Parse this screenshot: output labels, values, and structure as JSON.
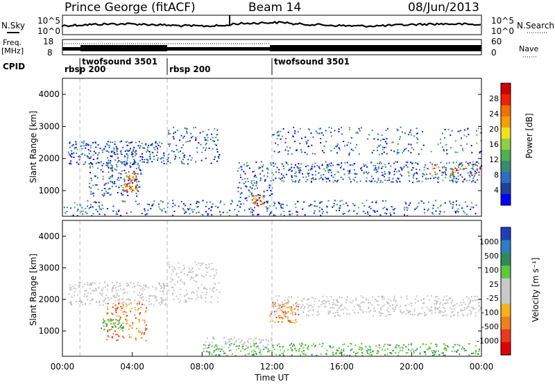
{
  "header": {
    "station": "Prince George (fitACF)",
    "beam": "Beam 14",
    "date": "08/Jun/2013"
  },
  "status_panels": {
    "nsky_label": "N.Sky",
    "nsearch_label": "N.Search",
    "freq_label": "Freq.",
    "freq_unit": "[MHz]",
    "nave_label": "Nave",
    "cpid_label": "CPID",
    "left_ticks_noise": [
      "10^5",
      "10^0"
    ],
    "right_ticks_noise": [
      "10^5",
      "10^0"
    ],
    "left_ticks_freq": [
      "18",
      "8"
    ],
    "right_ticks_freq": [
      "60",
      "0"
    ]
  },
  "cpid_segments": [
    {
      "label": "rbsp 200",
      "start_hour": 0.0
    },
    {
      "label": "twofsound 3501",
      "start_hour": 1.0
    },
    {
      "label": "rbsp 200",
      "start_hour": 6.0
    },
    {
      "label": "twofsound 3501",
      "start_hour": 12.0
    }
  ],
  "time_axis": {
    "label": "Time UT",
    "ticks": [
      "00:00",
      "04:00",
      "08:00",
      "12:00",
      "16:00",
      "20:00",
      "00:00"
    ]
  },
  "chart_data": [
    {
      "type": "heatmap",
      "ylabel": "Slant Range [km]",
      "yticks": [
        "1000",
        "2000",
        "3000",
        "4000"
      ],
      "xlim": [
        0,
        24
      ],
      "ylim": [
        200,
        4500
      ],
      "colorbar_label": "Power [dB]",
      "colorbar_ticks": [
        "4",
        "8",
        "12",
        "16",
        "20",
        "24",
        "28"
      ],
      "colorbar_colors": [
        "#0000ff",
        "#1f3fa0",
        "#2a6ec8",
        "#3a8a70",
        "#4fb04f",
        "#8fd040",
        "#f0e020",
        "#f4a000",
        "#f07000",
        "#f02000",
        "#d00000"
      ]
    },
    {
      "type": "heatmap",
      "ylabel": "Slant Range [km]",
      "yticks": [
        "1000",
        "2000",
        "3000",
        "4000"
      ],
      "xlim": [
        0,
        24
      ],
      "ylim": [
        200,
        4500
      ],
      "colorbar_label": "Velocity [m s⁻¹]",
      "colorbar_ticks": [
        "1000",
        "500",
        "100",
        "25",
        "-25",
        "-100",
        "-500",
        "-1000"
      ],
      "colorbar_colors": [
        "#1f3fb8",
        "#2c7fc0",
        "#2f8a5a",
        "#5cc83c",
        "#c8c8c8",
        "#c8c8c8",
        "#f7b11a",
        "#f07f1e",
        "#e83a20",
        "#e00000"
      ]
    }
  ]
}
